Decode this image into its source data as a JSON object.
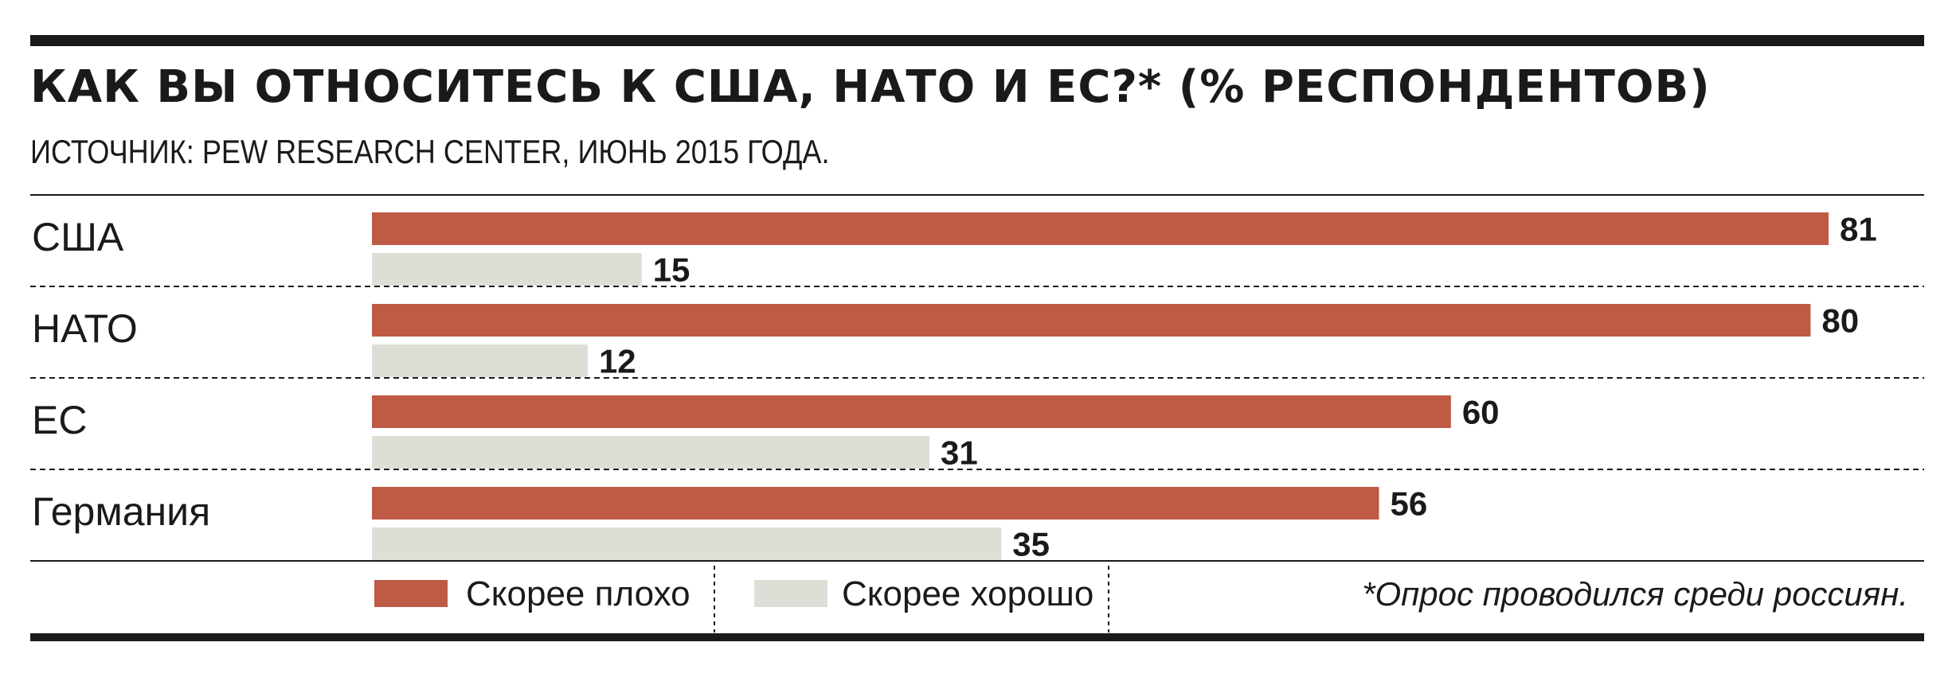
{
  "title": "КАК ВЫ ОТНОСИТЕСЬ К США, НАТО И ЕС?* (% РЕСПОНДЕНТОВ)",
  "subtitle": "ИСТОЧНИК: PEW RESEARCH CENTER, ИЮНЬ 2015 ГОДА.",
  "footnote": "*Опрос проводился среди россиян.",
  "colors": {
    "bad": "#bf5a44",
    "good": "#dfded6",
    "rule": "#1a1a1a"
  },
  "chart_data": {
    "type": "bar",
    "orientation": "horizontal",
    "categories": [
      "США",
      "НАТО",
      "ЕС",
      "Германия"
    ],
    "series": [
      {
        "name": "Скорее плохо",
        "values": [
          81,
          80,
          60,
          56
        ]
      },
      {
        "name": "Скорее хорошо",
        "values": [
          15,
          12,
          31,
          35
        ]
      }
    ],
    "xlim": [
      0,
      81
    ],
    "grid": false,
    "legend": "bottom",
    "data_labels": true
  }
}
